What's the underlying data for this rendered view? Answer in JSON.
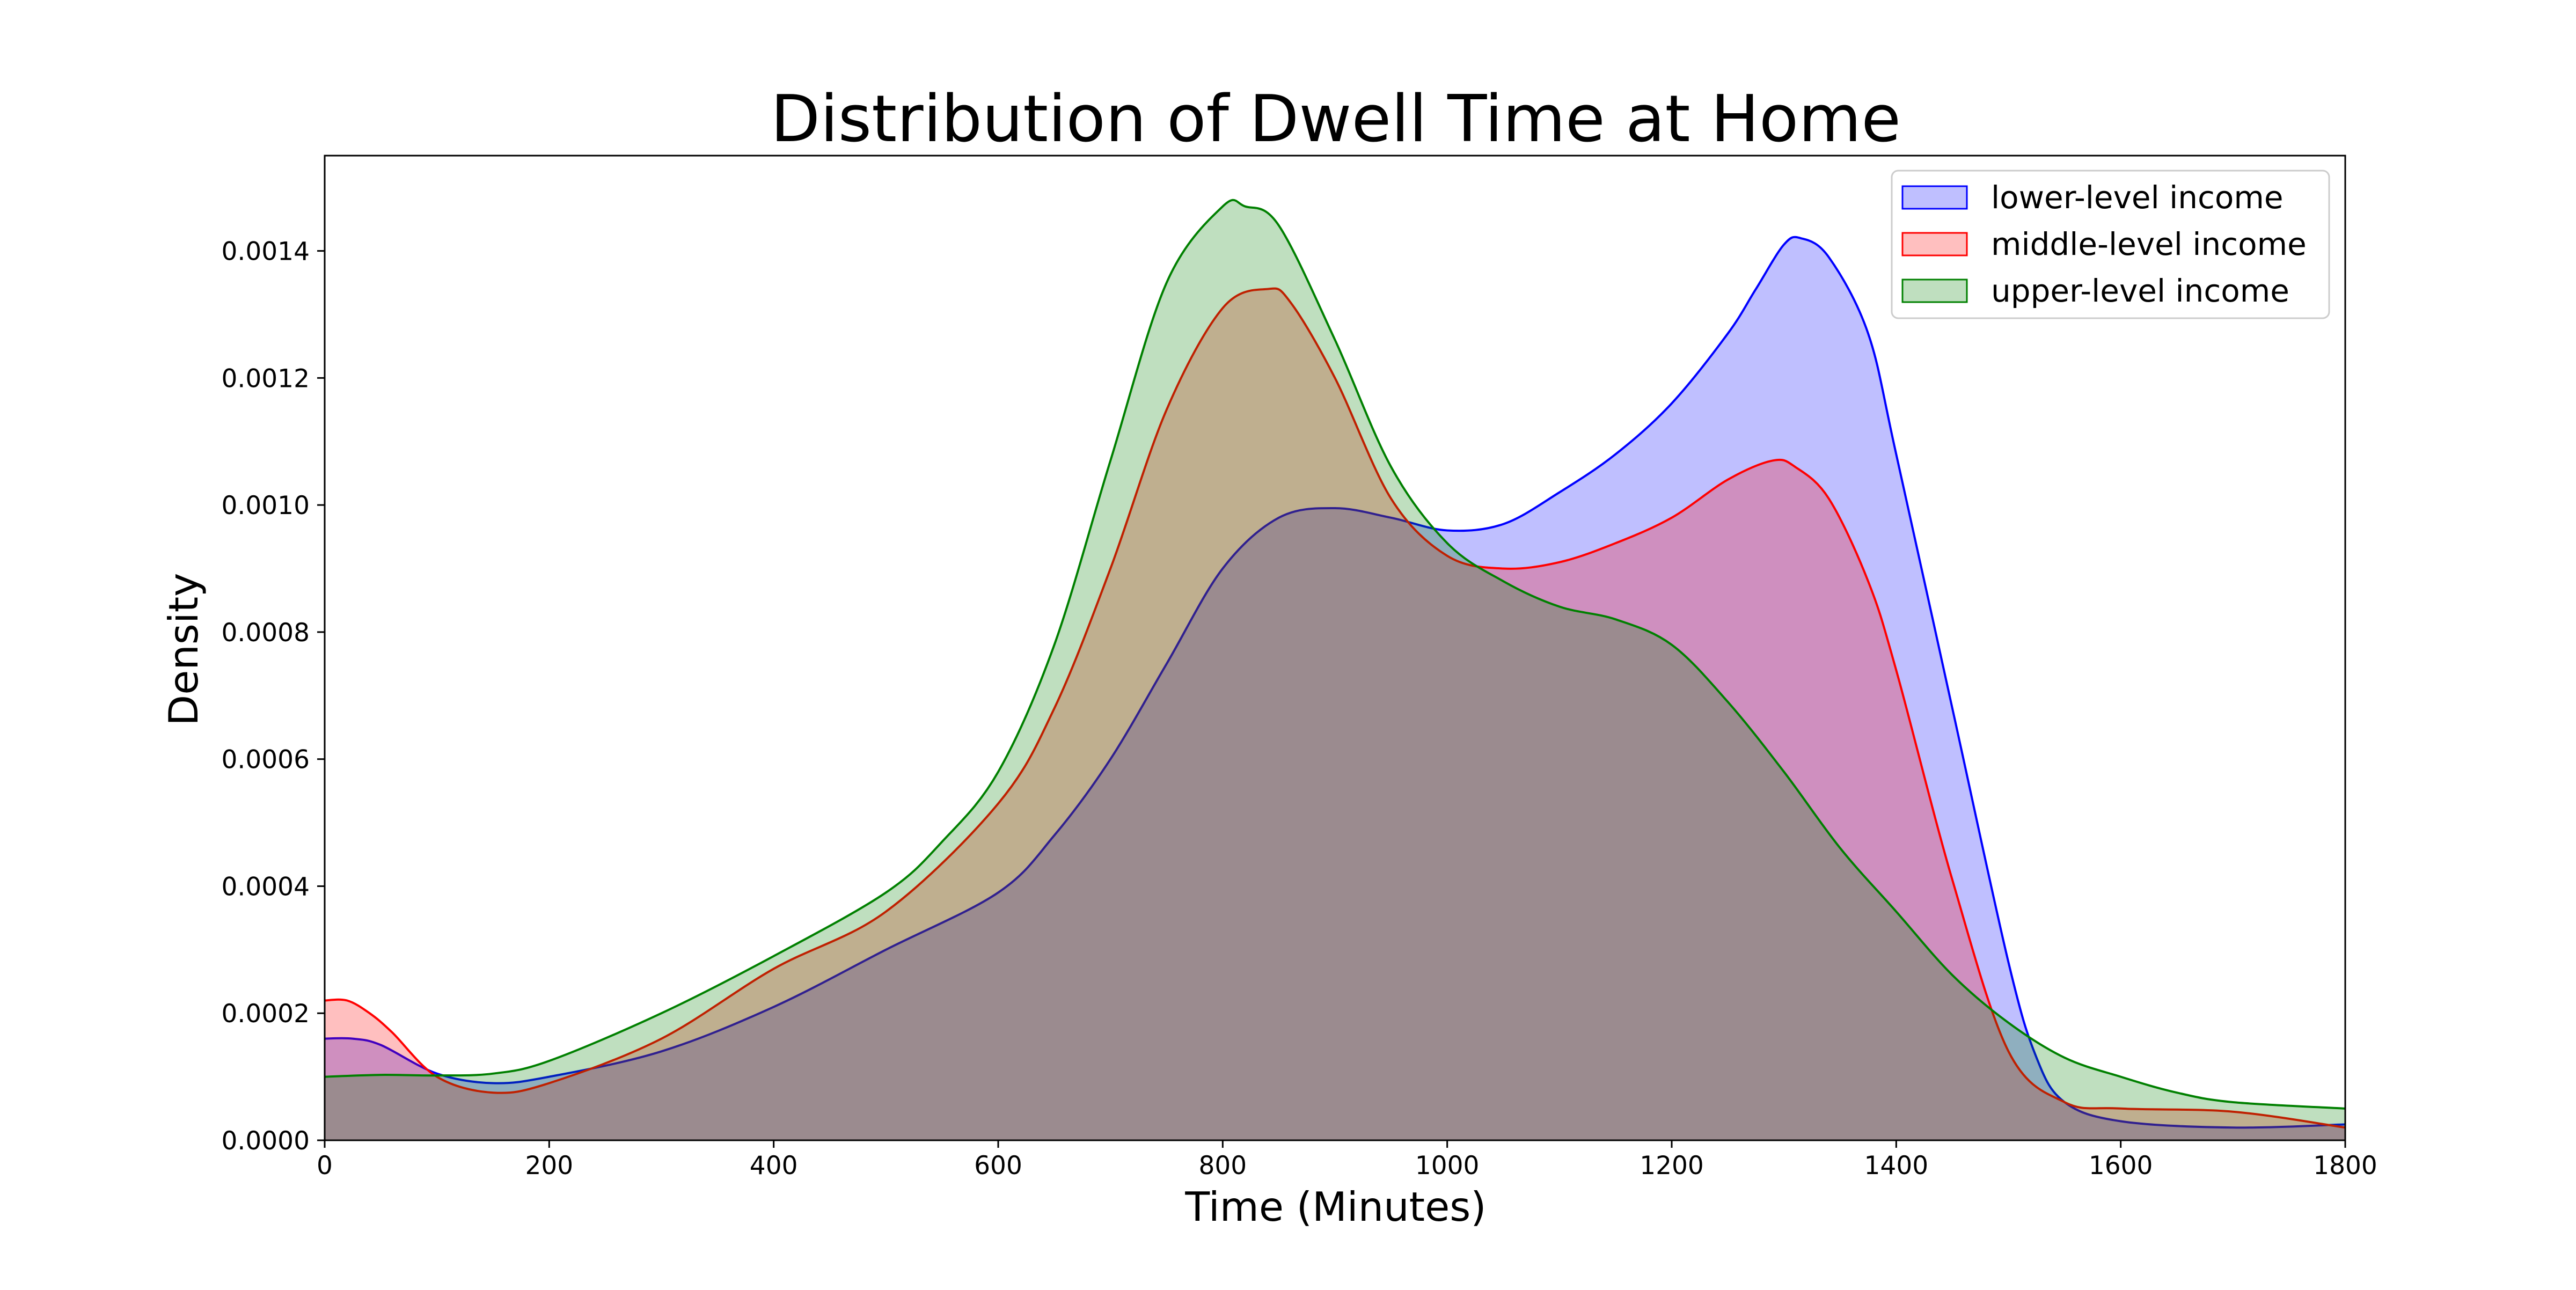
{
  "chart_data": {
    "type": "area",
    "title": "Distribution of Dwell Time at Home",
    "xlabel": "Time (Minutes)",
    "ylabel": "Density",
    "xlim": [
      0,
      1800
    ],
    "ylim": [
      0,
      0.00155
    ],
    "x_ticks": [
      0,
      200,
      400,
      600,
      800,
      1000,
      1200,
      1400,
      1600,
      1800
    ],
    "x_tick_labels": [
      "0",
      "200",
      "400",
      "600",
      "800",
      "1000",
      "1200",
      "1400",
      "1600",
      "1800"
    ],
    "y_ticks": [
      0,
      0.0002,
      0.0004,
      0.0006,
      0.0008,
      0.001,
      0.0012,
      0.0014
    ],
    "y_tick_labels": [
      "0.0000",
      "0.0002",
      "0.0004",
      "0.0006",
      "0.0008",
      "0.0010",
      "0.0012",
      "0.0014"
    ],
    "grid": false,
    "legend_position": "top-right",
    "series": [
      {
        "name": "lower-level income",
        "color": "#0000ff",
        "fill": "#0000ff",
        "points": [
          [
            0,
            0.00016
          ],
          [
            25,
            0.00016
          ],
          [
            50,
            0.00015
          ],
          [
            100,
            0.000105
          ],
          [
            150,
            9e-05
          ],
          [
            200,
            0.0001
          ],
          [
            300,
            0.00014
          ],
          [
            400,
            0.00021
          ],
          [
            500,
            0.0003
          ],
          [
            600,
            0.00039
          ],
          [
            650,
            0.00048
          ],
          [
            700,
            0.0006
          ],
          [
            750,
            0.00075
          ],
          [
            800,
            0.0009
          ],
          [
            850,
            0.00098
          ],
          [
            900,
            0.000995
          ],
          [
            950,
            0.00098
          ],
          [
            1000,
            0.00096
          ],
          [
            1050,
            0.00097
          ],
          [
            1100,
            0.00102
          ],
          [
            1150,
            0.00108
          ],
          [
            1200,
            0.00116
          ],
          [
            1250,
            0.00127
          ],
          [
            1275,
            0.00134
          ],
          [
            1300,
            0.00141
          ],
          [
            1315,
            0.00142
          ],
          [
            1340,
            0.00139
          ],
          [
            1375,
            0.00127
          ],
          [
            1400,
            0.00108
          ],
          [
            1450,
            0.00068
          ],
          [
            1500,
            0.00028
          ],
          [
            1525,
            0.00013
          ],
          [
            1550,
            6e-05
          ],
          [
            1600,
            3e-05
          ],
          [
            1700,
            2e-05
          ],
          [
            1800,
            2.5e-05
          ]
        ]
      },
      {
        "name": "middle-level income",
        "color": "#ff0000",
        "fill": "#ff0000",
        "points": [
          [
            0,
            0.00022
          ],
          [
            20,
            0.00022
          ],
          [
            40,
            0.0002
          ],
          [
            60,
            0.00017
          ],
          [
            100,
            0.0001
          ],
          [
            150,
            7.5e-05
          ],
          [
            200,
            9e-05
          ],
          [
            300,
            0.00016
          ],
          [
            400,
            0.00027
          ],
          [
            500,
            0.00036
          ],
          [
            600,
            0.00053
          ],
          [
            650,
            0.00068
          ],
          [
            700,
            0.0009
          ],
          [
            750,
            0.00115
          ],
          [
            800,
            0.00131
          ],
          [
            840,
            0.00134
          ],
          [
            860,
            0.00132
          ],
          [
            900,
            0.0012
          ],
          [
            950,
            0.00101
          ],
          [
            1000,
            0.00092
          ],
          [
            1050,
            0.0009
          ],
          [
            1100,
            0.00091
          ],
          [
            1150,
            0.00094
          ],
          [
            1200,
            0.00098
          ],
          [
            1250,
            0.00104
          ],
          [
            1290,
            0.00107
          ],
          [
            1310,
            0.00106
          ],
          [
            1340,
            0.00101
          ],
          [
            1375,
            0.00088
          ],
          [
            1400,
            0.00074
          ],
          [
            1450,
            0.00041
          ],
          [
            1500,
            0.00014
          ],
          [
            1550,
            6e-05
          ],
          [
            1600,
            5e-05
          ],
          [
            1700,
            4.5e-05
          ],
          [
            1800,
            2e-05
          ]
        ]
      },
      {
        "name": "upper-level income",
        "color": "#008000",
        "fill": "#008000",
        "points": [
          [
            0,
            0.0001
          ],
          [
            50,
            0.000103
          ],
          [
            100,
            0.000102
          ],
          [
            150,
            0.000105
          ],
          [
            200,
            0.000125
          ],
          [
            300,
            0.0002
          ],
          [
            400,
            0.00029
          ],
          [
            500,
            0.00039
          ],
          [
            550,
            0.00047
          ],
          [
            600,
            0.00058
          ],
          [
            650,
            0.00078
          ],
          [
            700,
            0.00107
          ],
          [
            750,
            0.00135
          ],
          [
            800,
            0.00147
          ],
          [
            820,
            0.00147
          ],
          [
            850,
            0.00144
          ],
          [
            900,
            0.00126
          ],
          [
            950,
            0.00106
          ],
          [
            1000,
            0.00094
          ],
          [
            1050,
            0.00088
          ],
          [
            1100,
            0.00084
          ],
          [
            1150,
            0.00082
          ],
          [
            1200,
            0.00078
          ],
          [
            1250,
            0.00069
          ],
          [
            1300,
            0.00058
          ],
          [
            1350,
            0.00046
          ],
          [
            1400,
            0.00036
          ],
          [
            1450,
            0.00026
          ],
          [
            1500,
            0.000185
          ],
          [
            1550,
            0.00013
          ],
          [
            1600,
            0.0001
          ],
          [
            1650,
            7.5e-05
          ],
          [
            1700,
            6e-05
          ],
          [
            1800,
            5e-05
          ]
        ]
      }
    ]
  }
}
